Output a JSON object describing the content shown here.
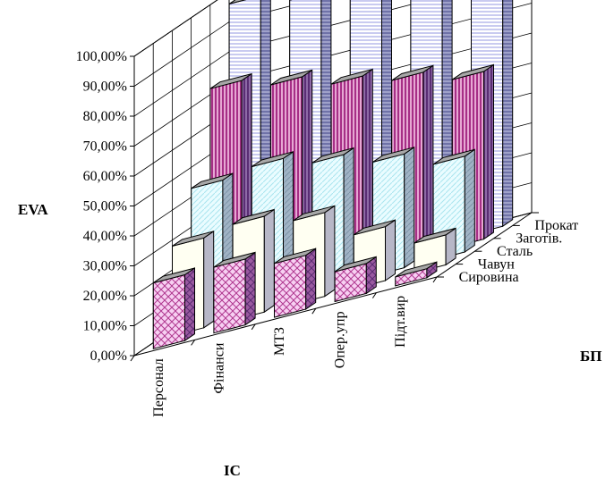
{
  "chart_data": {
    "type": "bar",
    "subtype": "3d-column",
    "ylabel": "EVA",
    "xlabel": "ІС",
    "zlabel": "БП",
    "ylim": [
      0,
      100
    ],
    "y_ticks": [
      "0,00%",
      "10,00%",
      "20,00%",
      "30,00%",
      "40,00%",
      "50,00%",
      "60,00%",
      "70,00%",
      "80,00%",
      "90,00%",
      "100,00%"
    ],
    "categories": [
      "Персонал",
      "Фінанси",
      "МТЗ",
      "Опер.упр",
      "Підт.вир"
    ],
    "series": [
      {
        "name": "Сировина",
        "values": [
          22,
          22,
          18,
          10,
          3
        ]
      },
      {
        "name": "Чавун",
        "values": [
          30,
          32,
          28,
          18,
          10
        ]
      },
      {
        "name": "Сталь",
        "values": [
          45,
          47,
          43,
          38,
          32
        ]
      },
      {
        "name": "Заготів.",
        "values": [
          74,
          70,
          65,
          61,
          56
        ]
      },
      {
        "name": "Прокат",
        "values": [
          98,
          94,
          89,
          91,
          87
        ]
      }
    ],
    "series_colors": [
      "#f4c2ee",
      "#fffef0",
      "#e2fbff",
      "#a62e86",
      "#dadcf4"
    ],
    "grid": true,
    "legend": "depth-axis-labels"
  }
}
